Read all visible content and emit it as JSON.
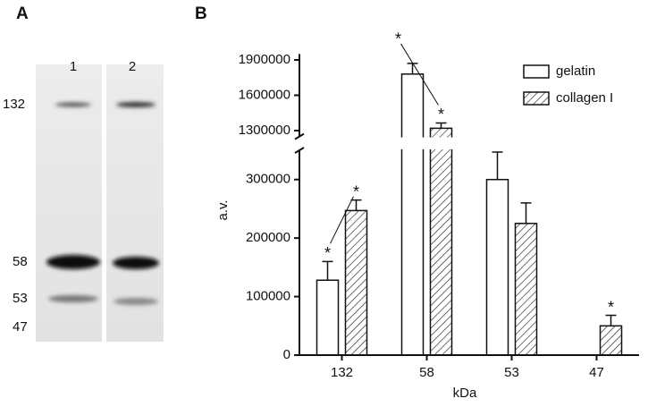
{
  "panel_a": {
    "label": "A",
    "lanes": [
      "1",
      "2"
    ],
    "markers": [
      "132",
      "58",
      "53",
      "47"
    ]
  },
  "chart_data": {
    "type": "bar",
    "label": "B",
    "x_label": "kDa",
    "y_label": "a.v.",
    "categories": [
      "132",
      "58",
      "53",
      "47"
    ],
    "series": [
      {
        "name": "gelatin",
        "color": "#ffffff",
        "values": [
          128000,
          1780000,
          300000,
          null
        ],
        "errors": [
          32000,
          90000,
          47000,
          null
        ]
      },
      {
        "name": "collagen I",
        "color": "hatch",
        "values": [
          247000,
          1320000,
          225000,
          50000
        ],
        "errors": [
          18000,
          45000,
          35000,
          18000
        ]
      }
    ],
    "ylim_lower": [
      0,
      350000
    ],
    "ylim_upper": [
      1250000,
      1950000
    ],
    "yticks": [
      0,
      100000,
      200000,
      300000,
      1300000,
      1600000,
      1900000
    ],
    "annotations": [
      "*",
      "*",
      "*",
      "*",
      "*"
    ],
    "legend": "top-right"
  }
}
